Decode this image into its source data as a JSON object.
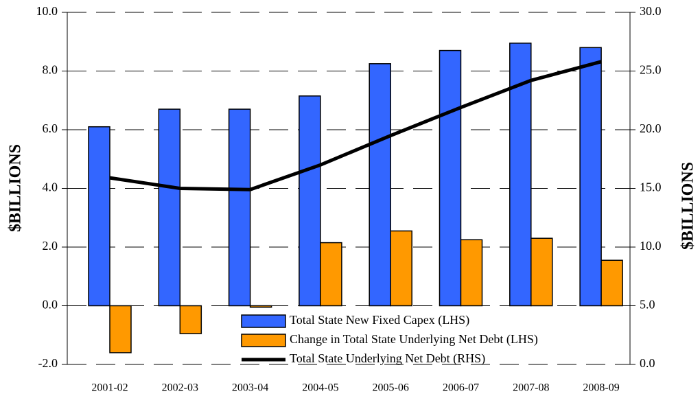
{
  "chart_data": {
    "type": "bar",
    "categories": [
      "2001-02",
      "2002-03",
      "2003-04",
      "2004-05",
      "2005-06",
      "2006-07",
      "2007-08",
      "2008-09"
    ],
    "series": [
      {
        "name": "Total State New Fixed Capex (LHS)",
        "type": "bar",
        "color": "#3366ff",
        "values": [
          6.1,
          6.7,
          6.7,
          7.15,
          8.25,
          8.7,
          8.95,
          8.8
        ]
      },
      {
        "name": "Change in Total State Underlying Net Debt (LHS)",
        "type": "bar",
        "color": "#ff9900",
        "values": [
          -1.6,
          -0.95,
          -0.05,
          2.15,
          2.55,
          2.25,
          2.3,
          1.55
        ]
      },
      {
        "name": "Total State Underlying Net Debt (RHS)",
        "type": "line",
        "axis": "y2",
        "color": "#000000",
        "values": [
          15.9,
          15.0,
          14.9,
          17.0,
          19.5,
          21.9,
          24.2,
          25.8
        ]
      }
    ],
    "ylabel": "$BILLIONS",
    "y2label": "$BILLIONS",
    "ylim": [
      -2,
      10
    ],
    "yticks": [
      {
        "value": -2,
        "label": "-2.0"
      },
      {
        "value": 0,
        "label": "0.0"
      },
      {
        "value": 2,
        "label": "2.0"
      },
      {
        "value": 4,
        "label": "4.0"
      },
      {
        "value": 6,
        "label": "6.0"
      },
      {
        "value": 8,
        "label": "8.0"
      },
      {
        "value": 10,
        "label": "10.0"
      }
    ],
    "y2lim": [
      0,
      30
    ],
    "y2ticks": [
      {
        "value": 0,
        "label": "0.0"
      },
      {
        "value": 5,
        "label": "5.0"
      },
      {
        "value": 10,
        "label": "10.0"
      },
      {
        "value": 15,
        "label": "15.0"
      },
      {
        "value": 20,
        "label": "20.0"
      },
      {
        "value": 25,
        "label": "25.0"
      },
      {
        "value": 30,
        "label": "30.0"
      }
    ],
    "grid": true
  }
}
